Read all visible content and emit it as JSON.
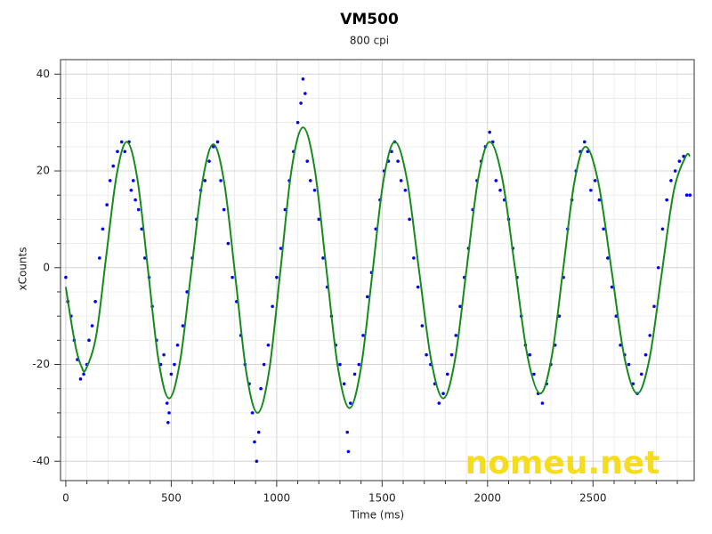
{
  "chart_data": {
    "type": "scatter",
    "title": "VM500",
    "subtitle": "800 cpi",
    "x_label": "Time (ms)",
    "y_label": "xCounts",
    "annotation": "nomeu.net",
    "xlim": [
      -25,
      2980
    ],
    "ylim": [
      -44,
      43
    ],
    "xticks": [
      0,
      500,
      1000,
      1500,
      2000,
      2500
    ],
    "yticks": [
      -40,
      -20,
      0,
      20,
      40
    ],
    "x_minor_ticks": [
      100,
      200,
      300,
      400,
      600,
      700,
      800,
      900,
      1100,
      1200,
      1300,
      1400,
      1600,
      1700,
      1800,
      1900,
      2100,
      2200,
      2300,
      2400,
      2600,
      2700,
      2800,
      2900
    ],
    "y_minor_ticks": [
      -35,
      -30,
      -25,
      -15,
      -10,
      -5,
      5,
      10,
      15,
      25,
      30,
      35
    ],
    "grid": true,
    "series": [
      {
        "type": "scatter",
        "color": "#0000ee",
        "x": [
          0,
          10,
          25,
          40,
          55,
          70,
          85,
          100,
          110,
          125,
          140,
          160,
          175,
          195,
          210,
          225,
          245,
          265,
          280,
          300,
          310,
          320,
          330,
          345,
          360,
          375,
          395,
          410,
          430,
          450,
          465,
          480,
          485,
          490,
          500,
          515,
          530,
          555,
          575,
          600,
          620,
          640,
          660,
          680,
          700,
          720,
          735,
          750,
          770,
          790,
          810,
          830,
          850,
          870,
          885,
          895,
          905,
          915,
          925,
          940,
          960,
          980,
          1000,
          1020,
          1040,
          1060,
          1080,
          1100,
          1115,
          1125,
          1135,
          1145,
          1160,
          1180,
          1200,
          1220,
          1240,
          1260,
          1280,
          1300,
          1320,
          1335,
          1340,
          1350,
          1370,
          1390,
          1410,
          1430,
          1450,
          1470,
          1490,
          1510,
          1530,
          1545,
          1560,
          1575,
          1590,
          1610,
          1630,
          1650,
          1670,
          1690,
          1710,
          1730,
          1750,
          1770,
          1790,
          1810,
          1830,
          1850,
          1870,
          1890,
          1910,
          1930,
          1950,
          1970,
          1990,
          2010,
          2025,
          2040,
          2060,
          2080,
          2100,
          2120,
          2140,
          2160,
          2180,
          2200,
          2220,
          2240,
          2260,
          2280,
          2300,
          2320,
          2340,
          2360,
          2380,
          2400,
          2420,
          2440,
          2460,
          2475,
          2490,
          2510,
          2530,
          2550,
          2570,
          2590,
          2610,
          2630,
          2650,
          2670,
          2690,
          2710,
          2730,
          2750,
          2770,
          2790,
          2810,
          2830,
          2850,
          2870,
          2890,
          2910,
          2930,
          2945,
          2960
        ],
        "values": [
          -2,
          -7,
          -10,
          -15,
          -19,
          -23,
          -22,
          -20,
          -15,
          -12,
          -7,
          2,
          8,
          13,
          18,
          21,
          24,
          26,
          24,
          26,
          16,
          18,
          14,
          12,
          8,
          2,
          -2,
          -8,
          -15,
          -20,
          -18,
          -28,
          -32,
          -30,
          -22,
          -20,
          -16,
          -12,
          -5,
          2,
          10,
          16,
          18,
          22,
          25,
          26,
          18,
          12,
          5,
          -2,
          -7,
          -14,
          -20,
          -24,
          -30,
          -36,
          -40,
          -34,
          -25,
          -20,
          -16,
          -8,
          -2,
          4,
          12,
          18,
          24,
          30,
          34,
          39,
          36,
          22,
          18,
          16,
          10,
          2,
          -4,
          -10,
          -16,
          -20,
          -24,
          -34,
          -38,
          -28,
          -22,
          -20,
          -14,
          -6,
          -1,
          8,
          14,
          20,
          22,
          24,
          26,
          22,
          18,
          16,
          10,
          2,
          -4,
          -12,
          -18,
          -20,
          -24,
          -28,
          -26,
          -22,
          -18,
          -14,
          -8,
          -2,
          4,
          12,
          18,
          22,
          25,
          28,
          26,
          18,
          16,
          14,
          10,
          4,
          -2,
          -10,
          -16,
          -18,
          -22,
          -26,
          -28,
          -24,
          -20,
          -16,
          -10,
          -2,
          8,
          14,
          20,
          24,
          26,
          24,
          16,
          18,
          14,
          8,
          2,
          -4,
          -10,
          -16,
          -18,
          -20,
          -24,
          -26,
          -22,
          -18,
          -14,
          -8,
          0,
          8,
          14,
          18,
          20,
          22,
          23,
          15,
          15
        ]
      },
      {
        "type": "line",
        "color": "#168a1c",
        "x": [
          0,
          25,
          50,
          75,
          95,
          144,
          192,
          241,
          290,
          340,
          390,
          440,
          490,
          542,
          595,
          648,
          700,
          752,
          805,
          857,
          910,
          964,
          1018,
          1071,
          1125,
          1180,
          1235,
          1290,
          1345,
          1399,
          1453,
          1506,
          1560,
          1618,
          1675,
          1733,
          1790,
          1845,
          1900,
          1955,
          2010,
          2070,
          2130,
          2190,
          2250,
          2304,
          2358,
          2411,
          2465,
          2526,
          2588,
          2649,
          2710,
          2768,
          2825,
          2883,
          2940,
          2960
        ],
        "values": [
          -4,
          -11,
          -17,
          -20.5,
          -21,
          -14.1,
          2.5,
          19.1,
          26,
          18.2,
          -0.5,
          -19.2,
          -27,
          -19.3,
          -0.75,
          17.8,
          25.5,
          17.4,
          -2.25,
          -21.9,
          -30,
          -21.4,
          -0.5,
          20.4,
          29,
          20.5,
          0,
          -20.5,
          -29,
          -20.9,
          -1.5,
          17.9,
          26,
          18.2,
          -0.5,
          -19.2,
          -27,
          -19.2,
          -0.5,
          18.2,
          26,
          18.4,
          0,
          -18.4,
          -26,
          -18.5,
          -0.5,
          17.5,
          25,
          17.5,
          -0.5,
          -18.5,
          -26,
          -18.8,
          -1.5,
          15.8,
          23,
          23
        ]
      }
    ]
  }
}
